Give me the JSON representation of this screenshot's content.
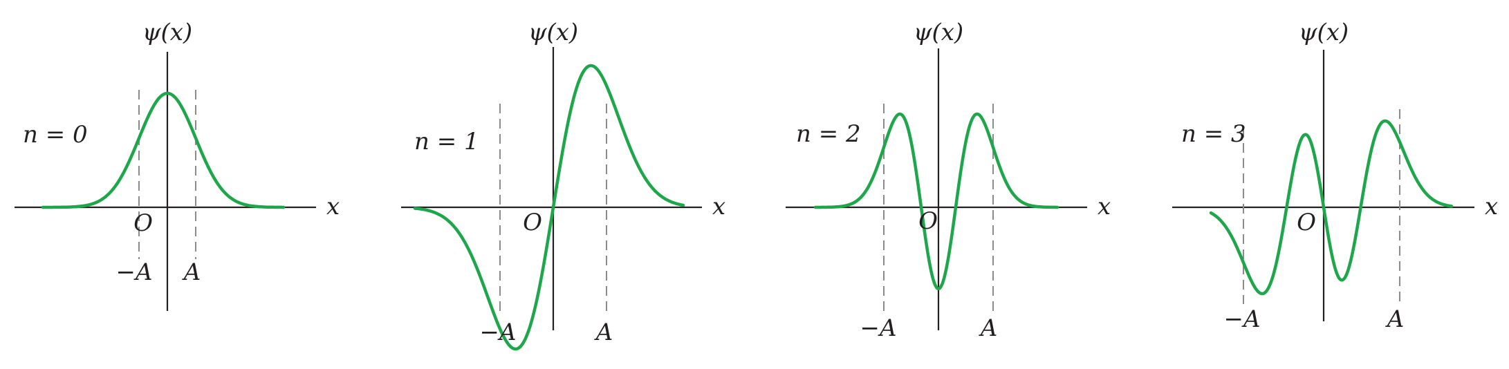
{
  "panels": [
    {
      "id": "n0",
      "label": "n = 0",
      "n": 0,
      "ylabel": "ψ(x)",
      "xlabel": "x",
      "origin": "O",
      "neg_a": "−A",
      "pos_a": "A"
    },
    {
      "id": "n1",
      "label": "n = 1",
      "n": 1,
      "ylabel": "ψ(x)",
      "xlabel": "x",
      "origin": "O",
      "neg_a": "−A",
      "pos_a": "A"
    },
    {
      "id": "n2",
      "label": "n = 2",
      "n": 2,
      "ylabel": "ψ(x)",
      "xlabel": "x",
      "origin": "O",
      "neg_a": "−A",
      "pos_a": "A"
    },
    {
      "id": "n3",
      "label": "n = 3",
      "n": 3,
      "ylabel": "ψ(x)",
      "xlabel": "x",
      "origin": "O",
      "neg_a": "−A",
      "pos_a": "A"
    }
  ],
  "colors": {
    "curve": "#1ea64b",
    "axis": "#231f20",
    "guide": "#8a8a8a"
  }
}
